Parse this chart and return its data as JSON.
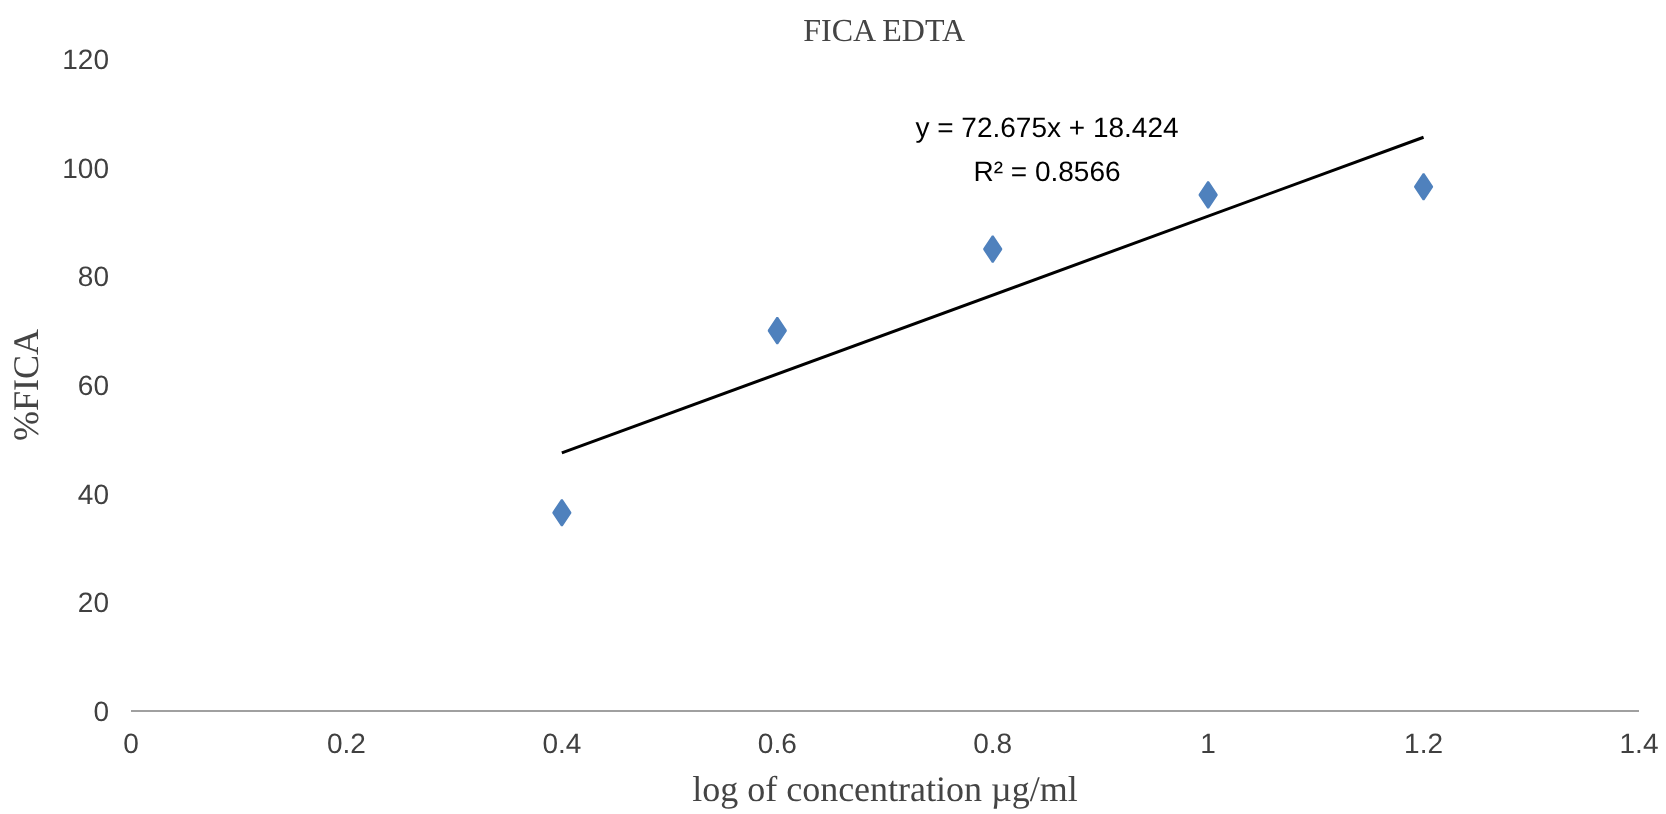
{
  "chart_data": {
    "type": "scatter",
    "title": "FICA EDTA",
    "xlabel": "log of concentration µg/ml",
    "ylabel": "%FICA",
    "xlim": [
      0,
      1.4
    ],
    "xticks": [
      0,
      0.2,
      0.4,
      0.6,
      0.8,
      1,
      1.2,
      1.4
    ],
    "ylim": [
      0,
      120
    ],
    "yticks": [
      0,
      20,
      40,
      60,
      80,
      100,
      120
    ],
    "grid": false,
    "marker": "diamond",
    "series": [
      {
        "color": "#4f81bd",
        "x": [
          0.4,
          0.6,
          0.8,
          1.0,
          1.2
        ],
        "values": [
          36.5,
          70,
          85,
          95,
          96.5
        ]
      },
      {
        "type": "line",
        "color": "#000000",
        "x": [
          0.4,
          1.2
        ],
        "values": [
          47.5,
          105.6
        ],
        "marker": "none",
        "line_style": "solid"
      }
    ],
    "annotations": [
      "y = 72.675x + 18.424",
      "R² = 0.8566"
    ]
  }
}
